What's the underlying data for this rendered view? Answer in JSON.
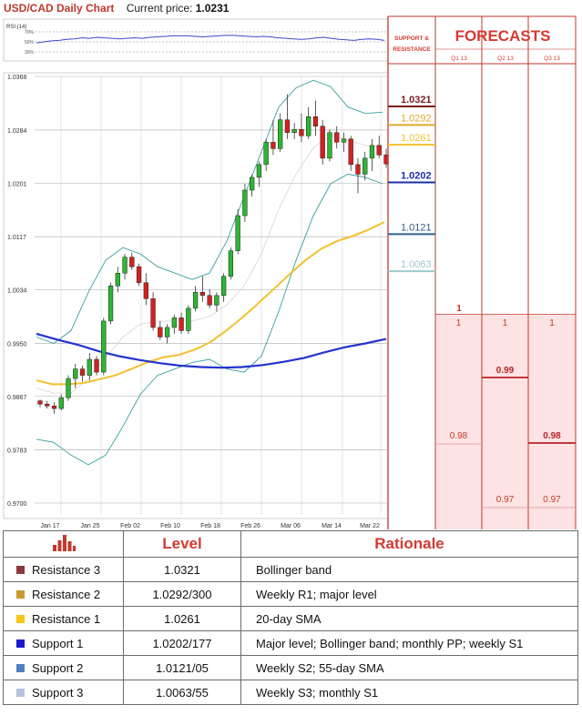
{
  "header": {
    "title": "USD/CAD Daily Chart",
    "price_label": "Current price:",
    "price": "1.0231"
  },
  "colors": {
    "up": "#2db534",
    "down": "#d42020",
    "ma200": "#2233cc",
    "ma55": "#f2c12e",
    "boll": "#3a9e9e",
    "accent": "#d43a32"
  },
  "chart_data": {
    "type": "candlestick",
    "rsi": {
      "label": "RSI (14)",
      "levels": [
        "70%",
        "50%",
        "30%"
      ],
      "values": [
        48,
        50,
        52,
        53,
        55,
        56,
        58,
        57,
        59,
        58,
        57,
        56,
        57,
        58,
        57,
        59,
        60,
        61,
        62,
        62,
        62,
        61,
        60,
        61,
        62,
        63,
        63,
        62,
        61,
        60,
        61,
        60,
        58,
        57,
        56,
        55,
        56,
        58,
        59,
        57,
        55,
        54,
        53,
        55,
        56,
        55,
        53
      ]
    },
    "y_ticks": [
      "1.0368",
      "1.0284",
      "1.0201",
      "1.0117",
      "1.0034",
      "0.9950",
      "0.9867",
      "0.9783",
      "0.9700"
    ],
    "ylim": [
      0.97,
      1.0368
    ],
    "x_ticks": [
      "Jan 17",
      "Jan 25",
      "Feb 02",
      "Feb 10",
      "Feb 18",
      "Feb 26",
      "Mar 06",
      "Mar 14",
      "Mar 22"
    ],
    "candles": [
      [
        0.986,
        0.9862,
        0.985,
        0.9855
      ],
      [
        0.9855,
        0.986,
        0.9848,
        0.9852
      ],
      [
        0.9852,
        0.9858,
        0.984,
        0.9848
      ],
      [
        0.9848,
        0.987,
        0.9845,
        0.9865
      ],
      [
        0.9865,
        0.99,
        0.986,
        0.9895
      ],
      [
        0.9895,
        0.9918,
        0.988,
        0.991
      ],
      [
        0.991,
        0.9915,
        0.989,
        0.99
      ],
      [
        0.99,
        0.9935,
        0.9892,
        0.9925
      ],
      [
        0.9925,
        0.993,
        0.99,
        0.9905
      ],
      [
        0.9905,
        0.999,
        0.99,
        0.9985
      ],
      [
        0.9985,
        1.0045,
        0.998,
        1.004
      ],
      [
        1.004,
        1.007,
        1.003,
        1.006
      ],
      [
        1.006,
        1.009,
        1.005,
        1.0085
      ],
      [
        1.0085,
        1.0092,
        1.0065,
        1.007
      ],
      [
        1.007,
        1.0075,
        1.004,
        1.0045
      ],
      [
        1.0045,
        1.006,
        1.001,
        1.002
      ],
      [
        1.002,
        1.003,
        0.997,
        0.9975
      ],
      [
        0.9975,
        0.9985,
        0.9955,
        0.996
      ],
      [
        0.996,
        0.998,
        0.995,
        0.9975
      ],
      [
        0.9975,
        0.9995,
        0.9965,
        0.999
      ],
      [
        0.999,
        0.9998,
        0.9965,
        0.997
      ],
      [
        0.997,
        1.001,
        0.9965,
        1.0005
      ],
      [
        1.0005,
        1.004,
        1.0,
        1.003
      ],
      [
        1.003,
        1.0055,
        1.0015,
        1.0025
      ],
      [
        1.0025,
        1.0035,
        1.0005,
        1.001
      ],
      [
        1.001,
        1.003,
        1.0,
        1.0025
      ],
      [
        1.0025,
        1.006,
        1.0015,
        1.0055
      ],
      [
        1.0055,
        1.01,
        1.005,
        1.0095
      ],
      [
        1.0095,
        1.016,
        1.009,
        1.015
      ],
      [
        1.015,
        1.02,
        1.014,
        1.019
      ],
      [
        1.019,
        1.0215,
        1.018,
        1.021
      ],
      [
        1.021,
        1.0235,
        1.0195,
        1.023
      ],
      [
        1.023,
        1.027,
        1.022,
        1.0265
      ],
      [
        1.0265,
        1.03,
        1.0245,
        1.0255
      ],
      [
        1.0255,
        1.031,
        1.025,
        1.03
      ],
      [
        1.03,
        1.034,
        1.027,
        1.028
      ],
      [
        1.028,
        1.0295,
        1.027,
        1.0285
      ],
      [
        1.0285,
        1.031,
        1.0265,
        1.0275
      ],
      [
        1.0275,
        1.032,
        1.027,
        1.0305
      ],
      [
        1.0305,
        1.033,
        1.0275,
        1.029
      ],
      [
        1.029,
        1.03,
        1.023,
        1.024
      ],
      [
        1.024,
        1.0285,
        1.0235,
        1.028
      ],
      [
        1.028,
        1.029,
        1.0255,
        1.0265
      ],
      [
        1.0265,
        1.028,
        1.025,
        1.027
      ],
      [
        1.027,
        1.0275,
        1.022,
        1.023
      ],
      [
        1.023,
        1.024,
        1.0185,
        1.0215
      ],
      [
        1.0215,
        1.025,
        1.0205,
        1.024
      ],
      [
        1.024,
        1.027,
        1.022,
        1.026
      ],
      [
        1.026,
        1.0275,
        1.024,
        1.0245
      ],
      [
        1.0245,
        1.0255,
        1.0225,
        1.0231
      ]
    ],
    "ma200": [
      0.996,
      0.995,
      0.9945,
      0.9936,
      0.9928,
      0.992,
      0.9916,
      0.991,
      0.9906,
      0.9905,
      0.9906,
      0.9908,
      0.9915,
      0.9922,
      0.9935,
      0.9955,
      0.9985,
      1.002,
      1.006,
      1.009,
      1.011,
      1.0128,
      1.014
    ],
    "ma200_pts": [
      0.9965,
      0.9956,
      0.9948,
      0.9938,
      0.993,
      0.9924,
      0.9919,
      0.9915,
      0.9913,
      0.9912,
      0.9913,
      0.9916,
      0.9921,
      0.9927,
      0.9936,
      0.9944,
      0.995,
      0.9957
    ],
    "ma55": [
      0.9892,
      0.9886,
      0.9886,
      0.9888,
      0.9894,
      0.99,
      0.991,
      0.992,
      0.9928,
      0.9932,
      0.994,
      0.9952,
      0.997,
      0.999,
      1.0012,
      1.0035,
      1.0058,
      1.008,
      1.0098,
      1.011,
      1.0118,
      1.0128,
      1.014
    ],
    "boll_upper": [
      0.996,
      0.995,
      0.997,
      1.003,
      1.008,
      1.01,
      1.009,
      1.007,
      1.006,
      1.005,
      1.006,
      1.011,
      1.018,
      1.025,
      1.032,
      1.035,
      1.0362,
      1.0352,
      1.032,
      1.031,
      1.0312
    ],
    "boll_lower": [
      0.98,
      0.9795,
      0.9775,
      0.976,
      0.9775,
      0.982,
      0.987,
      0.99,
      0.991,
      0.992,
      0.9925,
      0.991,
      0.9905,
      0.993,
      1.0,
      1.008,
      1.015,
      1.02,
      1.0215,
      1.021,
      1.02
    ],
    "boll_mid": [
      0.988,
      0.9872,
      0.9872,
      0.9895,
      0.9928,
      0.996,
      0.998,
      0.9985,
      0.9985,
      0.9985,
      0.9992,
      1.001,
      1.004,
      1.009,
      1.016,
      1.0215,
      1.0256,
      1.0276,
      1.0268,
      1.026,
      1.0256
    ],
    "sr_levels": [
      {
        "value": 1.0321,
        "label": "1.0321",
        "color": "#7a1a1a",
        "bold": true
      },
      {
        "value": 1.0292,
        "label": "1.0292",
        "color": "#e0a830",
        "bold": false
      },
      {
        "value": 1.0261,
        "label": "1.0261",
        "color": "#f2c12e",
        "bold": false
      },
      {
        "value": 1.0202,
        "label": "1.0202",
        "color": "#1a2fa8",
        "bold": true
      },
      {
        "value": 1.0121,
        "label": "1.0121",
        "color": "#2e5f8a",
        "bold": false
      },
      {
        "value": 1.0063,
        "label": "1.0063",
        "color": "#9ec8cc",
        "bold": false
      }
    ],
    "forecasts": {
      "title": "FORECASTS",
      "sr_header": [
        "SUPPORT &",
        "RESISTANCE"
      ],
      "periods": [
        "Q1 13",
        "Q2 13",
        "Q3 13"
      ],
      "current_label": "1",
      "boxes": [
        {
          "top": "1",
          "mid": "",
          "low": "0.98"
        },
        {
          "top": "1",
          "mid": "0.99",
          "low": "0.97"
        },
        {
          "top": "1",
          "mid": "0.98",
          "low": "0.97"
        }
      ]
    }
  },
  "levels_table": {
    "headers": {
      "level": "Level",
      "rationale": "Rationale"
    },
    "rows": [
      {
        "name": "Resistance 3",
        "level": "1.0321",
        "rationale": "Bollinger band",
        "color": "#8b3a3a"
      },
      {
        "name": "Resistance 2",
        "level": "1.0292/300",
        "rationale": "Weekly R1; major level",
        "color": "#c99a2e"
      },
      {
        "name": "Resistance 1",
        "level": "1.0261",
        "rationale": "20-day SMA",
        "color": "#f5c518"
      },
      {
        "name": "Support 1",
        "level": "1.0202/177",
        "rationale": "Major level; Bollinger band; monthly PP; weekly S1",
        "color": "#1a1acc"
      },
      {
        "name": "Support 2",
        "level": "1.0121/05",
        "rationale": "Weekly S2; 55-day SMA",
        "color": "#4f7fbf"
      },
      {
        "name": "Support 3",
        "level": "1.0063/55",
        "rationale": "Weekly S3; monthly S1",
        "color": "#b0c4de"
      }
    ]
  }
}
